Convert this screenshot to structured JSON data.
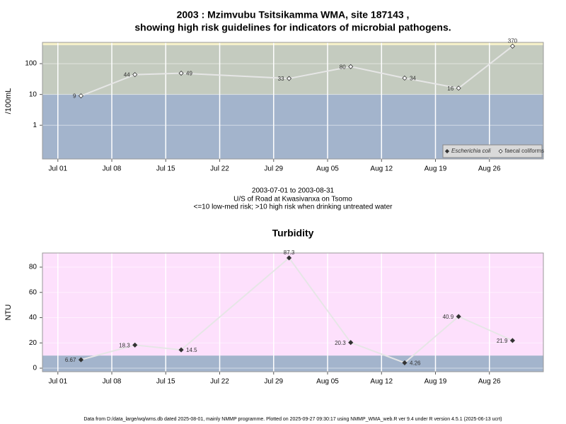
{
  "chart_data": [
    {
      "type": "line",
      "title": [
        "2003 : Mzimvubu Tsitsikamma WMA, site 187143 ,",
        "showing high risk guidelines for indicators of microbial pathogens."
      ],
      "y_label": "/100mL",
      "notes": [
        "2003-07-01 to 2003-08-31",
        "U/S of Road at Kwasivanxa on Tsomo",
        "<=10 low-med risk; >10 high risk when drinking untreated water"
      ],
      "log_y": true,
      "x": [
        "Jul 04",
        "Jul 11",
        "Jul 17",
        "Jul 31",
        "Aug 08",
        "Aug 15",
        "Aug 22",
        "Aug 29"
      ],
      "series": [
        {
          "name": "Escherichia coli",
          "marker": "filled-diamond",
          "color": "#333333",
          "values": [
            null,
            null,
            null,
            null,
            null,
            null,
            null,
            null
          ]
        },
        {
          "name": "faecal coliforms",
          "marker": "open-diamond",
          "color": "#333333",
          "values": [
            9,
            44,
            49,
            33,
            80,
            34,
            16,
            370
          ]
        }
      ],
      "line_color": "#e6e6e6",
      "xlim": [
        "Jun 29",
        "Sep 02"
      ],
      "xticks": [
        "Jul 01",
        "Jul 08",
        "Jul 15",
        "Jul 22",
        "Jul 29",
        "Aug 05",
        "Aug 12",
        "Aug 19",
        "Aug 26"
      ],
      "ylim": [
        0.08,
        490
      ],
      "yticks": [
        1,
        10,
        100
      ],
      "bands": [
        {
          "to": 10,
          "color": "#a3b4cc"
        },
        {
          "from": 10,
          "to": 400,
          "color": "#c4cbbf"
        },
        {
          "from": 400,
          "color": "#f5f0c8"
        }
      ],
      "grid": true,
      "legend": "bottomright"
    },
    {
      "type": "line",
      "title": [
        "Turbidity"
      ],
      "y_label": "NTU",
      "log_y": false,
      "x": [
        "Jul 04",
        "Jul 11",
        "Jul 17",
        "Jul 31",
        "Aug 08",
        "Aug 15",
        "Aug 22",
        "Aug 29"
      ],
      "series": [
        {
          "marker": "filled-diamond",
          "color": "#333333",
          "values": [
            6.67,
            18.3,
            14.5,
            87.3,
            20.3,
            4.26,
            40.9,
            21.9
          ]
        }
      ],
      "line_color": "#e6e6e6",
      "xlim": [
        "Jun 29",
        "Sep 02"
      ],
      "xticks": [
        "Jul 01",
        "Jul 08",
        "Jul 15",
        "Jul 22",
        "Jul 29",
        "Aug 05",
        "Aug 12",
        "Aug 19",
        "Aug 26"
      ],
      "ylim": [
        -2.8,
        91.2
      ],
      "yticks": [
        0,
        20,
        40,
        60,
        80
      ],
      "bands": [
        {
          "to": 10,
          "color": "#a3b4cc"
        },
        {
          "from": 10,
          "color": "#fde0fc"
        }
      ],
      "grid": true
    }
  ],
  "footnote": "Data from D:/data_large/wq/wms.db dated 2025-08-01, mainly NMMP programme. Plotted on 2025-09-27 09:30:17 using NMMP_WMA_web.R ver 9.4 under R version 4.5.1 (2025-06-13 ucrt)"
}
